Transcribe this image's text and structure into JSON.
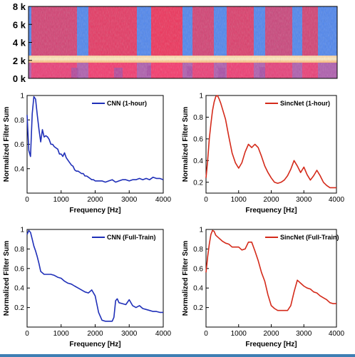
{
  "colors": {
    "cnn": "#1f2fb8",
    "sincnet": "#d42a1a",
    "spec_low": "#5b8ff0",
    "spec_high": "#ff2a4a",
    "axis": "#000000",
    "frame": "#3e7fb4"
  },
  "spectrogram": {
    "y_ticks": [
      "8 k",
      "6 k",
      "4 k",
      "2 k",
      "0 k"
    ]
  },
  "chart_data": [
    {
      "type": "line",
      "panel": "top-left",
      "xlabel": "Frequency [Hz]",
      "ylabel": "Normalized Filter Sum",
      "xlim": [
        0,
        4000
      ],
      "ylim": [
        0.2,
        1.0
      ],
      "x_ticks": [
        "0",
        "1000",
        "2000",
        "3000",
        "4000"
      ],
      "y_ticks": [
        "0.4",
        "0.6",
        "0.8",
        "1"
      ],
      "legend_position": "top-right",
      "series": [
        {
          "name": "CNN (1-hour)",
          "color": "#1f2fb8",
          "x": [
            0,
            50,
            100,
            150,
            200,
            250,
            300,
            350,
            400,
            450,
            500,
            550,
            600,
            650,
            700,
            750,
            800,
            850,
            900,
            950,
            1000,
            1050,
            1100,
            1150,
            1200,
            1250,
            1300,
            1350,
            1400,
            1450,
            1500,
            1550,
            1600,
            1650,
            1700,
            1750,
            1800,
            1850,
            1900,
            1950,
            2000,
            2100,
            2200,
            2300,
            2400,
            2500,
            2600,
            2700,
            2800,
            2900,
            3000,
            3100,
            3200,
            3300,
            3400,
            3500,
            3600,
            3700,
            3800,
            3900,
            4000
          ],
          "y": [
            0.84,
            0.55,
            0.5,
            0.85,
            0.99,
            0.97,
            0.84,
            0.72,
            0.62,
            0.72,
            0.66,
            0.67,
            0.66,
            0.64,
            0.6,
            0.6,
            0.58,
            0.57,
            0.56,
            0.52,
            0.52,
            0.5,
            0.53,
            0.49,
            0.47,
            0.45,
            0.43,
            0.42,
            0.39,
            0.38,
            0.38,
            0.37,
            0.36,
            0.36,
            0.34,
            0.34,
            0.33,
            0.32,
            0.31,
            0.31,
            0.3,
            0.3,
            0.3,
            0.29,
            0.3,
            0.31,
            0.29,
            0.3,
            0.31,
            0.31,
            0.3,
            0.31,
            0.31,
            0.32,
            0.31,
            0.32,
            0.31,
            0.33,
            0.32,
            0.32,
            0.31
          ]
        }
      ]
    },
    {
      "type": "line",
      "panel": "top-right",
      "xlabel": "Frequency [Hz]",
      "ylabel": "Normalized Filter Sum",
      "xlim": [
        0,
        4000
      ],
      "ylim": [
        0.1,
        1.0
      ],
      "x_ticks": [
        "0",
        "1000",
        "2000",
        "3000",
        "4000"
      ],
      "y_ticks": [
        "0.2",
        "0.4",
        "0.6",
        "0.8",
        "1"
      ],
      "legend_position": "top-right",
      "series": [
        {
          "name": "SincNet (1-hour)",
          "color": "#d42a1a",
          "x": [
            0,
            50,
            100,
            150,
            200,
            250,
            300,
            350,
            400,
            450,
            500,
            600,
            700,
            800,
            900,
            1000,
            1100,
            1200,
            1300,
            1400,
            1500,
            1600,
            1700,
            1800,
            1900,
            2000,
            2100,
            2200,
            2300,
            2400,
            2500,
            2600,
            2700,
            2800,
            2900,
            3000,
            3100,
            3200,
            3300,
            3400,
            3500,
            3600,
            3700,
            3800,
            3900,
            4000
          ],
          "y": [
            0.24,
            0.4,
            0.6,
            0.74,
            0.86,
            0.94,
            0.99,
            1.0,
            0.97,
            0.93,
            0.88,
            0.78,
            0.62,
            0.47,
            0.38,
            0.33,
            0.38,
            0.48,
            0.55,
            0.52,
            0.55,
            0.52,
            0.44,
            0.35,
            0.29,
            0.24,
            0.2,
            0.19,
            0.2,
            0.22,
            0.26,
            0.32,
            0.4,
            0.35,
            0.29,
            0.34,
            0.27,
            0.22,
            0.26,
            0.31,
            0.26,
            0.2,
            0.17,
            0.15,
            0.15,
            0.15
          ]
        }
      ]
    },
    {
      "type": "line",
      "panel": "bottom-left",
      "xlabel": "Frequency [Hz]",
      "ylabel": "Normalized Filter Sum",
      "xlim": [
        0,
        4000
      ],
      "ylim": [
        0.0,
        1.0
      ],
      "x_ticks": [
        "0",
        "1000",
        "2000",
        "3000",
        "4000"
      ],
      "y_ticks": [
        "0.2",
        "0.4",
        "0.6",
        "0.8",
        "1"
      ],
      "legend_position": "top-right",
      "series": [
        {
          "name": "CNN (Full-Train)",
          "color": "#1f2fb8",
          "x": [
            0,
            50,
            100,
            150,
            200,
            250,
            300,
            350,
            400,
            500,
            600,
            700,
            800,
            900,
            1000,
            1100,
            1200,
            1300,
            1400,
            1500,
            1600,
            1700,
            1800,
            1900,
            2000,
            2100,
            2200,
            2300,
            2400,
            2500,
            2550,
            2600,
            2650,
            2700,
            2800,
            2900,
            3000,
            3100,
            3200,
            3300,
            3400,
            3500,
            3600,
            3700,
            3800,
            3900,
            4000
          ],
          "y": [
            0.95,
            0.99,
            0.97,
            0.9,
            0.83,
            0.78,
            0.72,
            0.65,
            0.57,
            0.54,
            0.54,
            0.54,
            0.53,
            0.51,
            0.5,
            0.47,
            0.45,
            0.44,
            0.42,
            0.4,
            0.38,
            0.36,
            0.35,
            0.38,
            0.32,
            0.15,
            0.07,
            0.06,
            0.06,
            0.06,
            0.1,
            0.27,
            0.29,
            0.25,
            0.24,
            0.23,
            0.28,
            0.22,
            0.2,
            0.22,
            0.19,
            0.18,
            0.17,
            0.16,
            0.16,
            0.15,
            0.15
          ]
        }
      ]
    },
    {
      "type": "line",
      "panel": "bottom-right",
      "xlabel": "Frequency [Hz]",
      "ylabel": "Normalized Filter Sum",
      "xlim": [
        0,
        4000
      ],
      "ylim": [
        0.0,
        1.0
      ],
      "x_ticks": [
        "0",
        "1000",
        "2000",
        "3000",
        "4000"
      ],
      "y_ticks": [
        "0.2",
        "0.4",
        "0.6",
        "0.8",
        "1"
      ],
      "legend_position": "top-right",
      "series": [
        {
          "name": "SincNet (Full-Train)",
          "color": "#d42a1a",
          "x": [
            0,
            50,
            100,
            150,
            200,
            250,
            300,
            400,
            500,
            600,
            700,
            800,
            900,
            1000,
            1100,
            1200,
            1300,
            1400,
            1500,
            1600,
            1700,
            1800,
            1900,
            2000,
            2100,
            2200,
            2300,
            2400,
            2500,
            2600,
            2700,
            2800,
            2900,
            3000,
            3100,
            3200,
            3300,
            3400,
            3500,
            3600,
            3700,
            3800,
            3900,
            4000
          ],
          "y": [
            0.56,
            0.72,
            0.85,
            0.95,
            0.99,
            0.98,
            0.94,
            0.91,
            0.88,
            0.86,
            0.85,
            0.82,
            0.82,
            0.82,
            0.79,
            0.8,
            0.87,
            0.87,
            0.78,
            0.68,
            0.56,
            0.47,
            0.33,
            0.22,
            0.19,
            0.17,
            0.17,
            0.17,
            0.17,
            0.22,
            0.36,
            0.48,
            0.45,
            0.42,
            0.4,
            0.39,
            0.36,
            0.35,
            0.32,
            0.3,
            0.28,
            0.25,
            0.24,
            0.24
          ]
        }
      ]
    }
  ]
}
